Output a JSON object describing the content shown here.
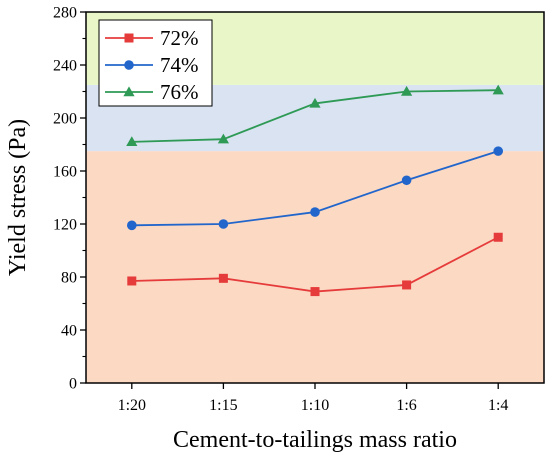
{
  "chart_data": {
    "type": "line",
    "xlabel": "Cement-to-tailings mass ratio",
    "ylabel": "Yield stress (Pa)",
    "categories": [
      "1:20",
      "1:15",
      "1:10",
      "1:6",
      "1:4"
    ],
    "ylim": [
      0,
      280
    ],
    "yticks": [
      0,
      40,
      80,
      120,
      160,
      200,
      240,
      280
    ],
    "grid": false,
    "legend_position": "top-left",
    "background_bands": [
      {
        "from": 0,
        "to": 175,
        "color": "#fbd9c3"
      },
      {
        "from": 175,
        "to": 225,
        "color": "#d9e3f2"
      },
      {
        "from": 225,
        "to": 280,
        "color": "#e9f7c8"
      }
    ],
    "series": [
      {
        "name": "72%",
        "color": "#e63b3b",
        "marker": "square",
        "values": [
          77,
          79,
          69,
          74,
          110
        ]
      },
      {
        "name": "74%",
        "color": "#2266cc",
        "marker": "circle",
        "values": [
          119,
          120,
          129,
          153,
          175
        ]
      },
      {
        "name": "76%",
        "color": "#2e9a55",
        "marker": "triangle",
        "values": [
          182,
          184,
          211,
          220,
          221
        ]
      }
    ]
  }
}
